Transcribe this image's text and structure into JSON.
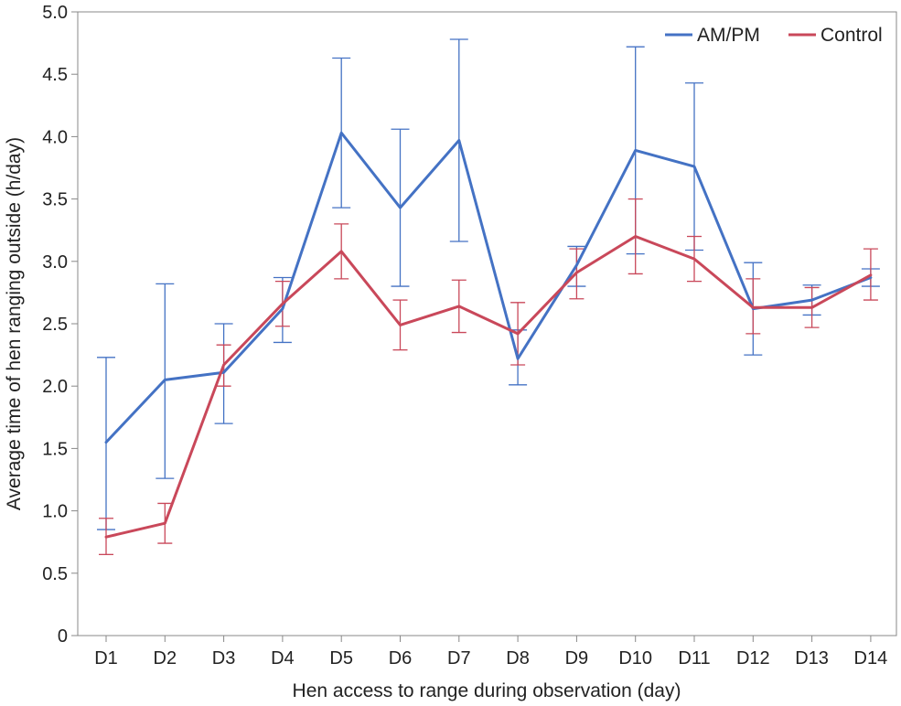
{
  "chart_data": {
    "type": "line",
    "title": "",
    "xlabel": "Hen access to range during observation (day)",
    "ylabel": "Average time of hen ranging outside (h/day)",
    "ylim": [
      0,
      5.0
    ],
    "yticks": [
      0,
      0.5,
      1.0,
      1.5,
      2.0,
      2.5,
      3.0,
      3.5,
      4.0,
      4.5,
      5.0
    ],
    "ytick_labels": [
      "0",
      "0.5",
      "1.0",
      "1.5",
      "2.0",
      "2.5",
      "3.0",
      "3.5",
      "4.0",
      "4.5",
      "5.0"
    ],
    "categories": [
      "D1",
      "D2",
      "D3",
      "D4",
      "D5",
      "D6",
      "D7",
      "D8",
      "D9",
      "D10",
      "D11",
      "D12",
      "D13",
      "D14"
    ],
    "grid": false,
    "legend_position": "top-right",
    "series": [
      {
        "name": "AM/PM",
        "color": "#4472c4",
        "values": [
          1.55,
          2.05,
          2.11,
          2.62,
          4.03,
          3.43,
          3.97,
          2.22,
          2.97,
          3.89,
          3.76,
          2.62,
          2.69,
          2.87
        ],
        "upper": [
          2.23,
          2.82,
          2.5,
          2.87,
          4.63,
          4.06,
          4.78,
          2.45,
          3.12,
          4.72,
          4.43,
          2.99,
          2.81,
          2.94
        ],
        "lower": [
          0.85,
          1.26,
          1.7,
          2.35,
          3.43,
          2.8,
          3.16,
          2.01,
          2.8,
          3.06,
          3.09,
          2.25,
          2.57,
          2.8
        ]
      },
      {
        "name": "Control",
        "color": "#c9485a",
        "values": [
          0.79,
          0.9,
          2.17,
          2.66,
          3.08,
          2.49,
          2.64,
          2.42,
          2.91,
          3.2,
          3.02,
          2.63,
          2.63,
          2.89
        ],
        "upper": [
          0.94,
          1.06,
          2.33,
          2.84,
          3.3,
          2.69,
          2.85,
          2.67,
          3.1,
          3.5,
          3.2,
          2.86,
          2.79,
          3.1
        ],
        "lower": [
          0.65,
          0.74,
          2.0,
          2.48,
          2.86,
          2.29,
          2.43,
          2.17,
          2.7,
          2.9,
          2.84,
          2.42,
          2.47,
          2.69
        ]
      }
    ]
  }
}
